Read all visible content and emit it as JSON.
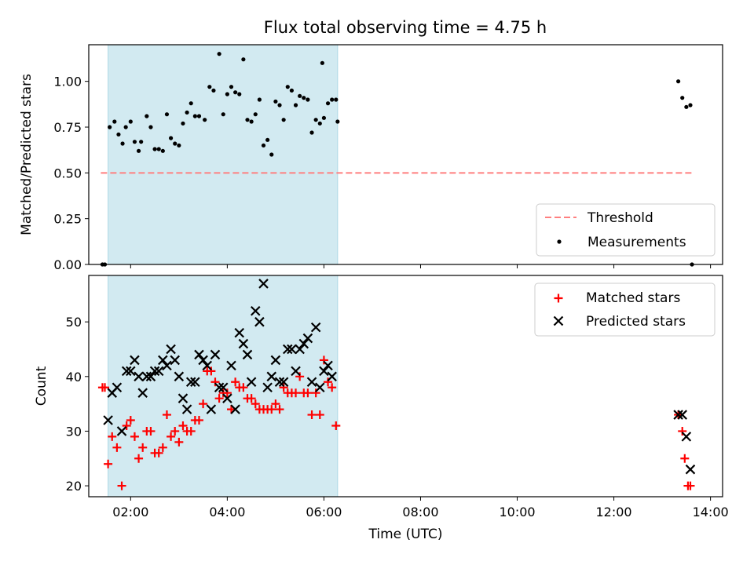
{
  "title": "Flux total observing time = 4.75 h",
  "colors": {
    "threshold": "#ff7f7f",
    "measurement": "#000000",
    "matched": "#ff0000",
    "predicted": "#000000",
    "shade": "#add8e6"
  },
  "chart_data": [
    {
      "type": "scatter",
      "panel": "top",
      "ylabel": "Matched/Predicted stars",
      "xlabel": "",
      "xlim": [
        "01:08",
        "14:15"
      ],
      "ylim": [
        0,
        1.2
      ],
      "yticks": [
        "0.00",
        "0.25",
        "0.50",
        "0.75",
        "1.00"
      ],
      "shaded_interval": [
        "01:32",
        "06:17"
      ],
      "legend_position": "lower right",
      "threshold": {
        "name": "Threshold",
        "value": 0.5,
        "x": [
          "01:23",
          "13:37"
        ],
        "style": "dashed"
      },
      "series": [
        {
          "name": "Measurements",
          "points": [
            [
              "01:25",
              0.0
            ],
            [
              "01:28",
              0.0
            ],
            [
              "01:34",
              0.75
            ],
            [
              "01:40",
              0.78
            ],
            [
              "01:45",
              0.71
            ],
            [
              "01:50",
              0.66
            ],
            [
              "01:54",
              0.75
            ],
            [
              "02:00",
              0.78
            ],
            [
              "02:05",
              0.67
            ],
            [
              "02:10",
              0.62
            ],
            [
              "02:13",
              0.67
            ],
            [
              "02:20",
              0.81
            ],
            [
              "02:25",
              0.75
            ],
            [
              "02:30",
              0.63
            ],
            [
              "02:35",
              0.63
            ],
            [
              "02:40",
              0.62
            ],
            [
              "02:45",
              0.82
            ],
            [
              "02:50",
              0.69
            ],
            [
              "02:55",
              0.66
            ],
            [
              "03:00",
              0.65
            ],
            [
              "03:05",
              0.77
            ],
            [
              "03:10",
              0.83
            ],
            [
              "03:15",
              0.88
            ],
            [
              "03:20",
              0.81
            ],
            [
              "03:25",
              0.81
            ],
            [
              "03:32",
              0.79
            ],
            [
              "03:38",
              0.97
            ],
            [
              "03:43",
              0.95
            ],
            [
              "03:50",
              1.15
            ],
            [
              "03:55",
              0.82
            ],
            [
              "04:00",
              0.93
            ],
            [
              "04:05",
              0.97
            ],
            [
              "04:10",
              0.94
            ],
            [
              "04:15",
              0.93
            ],
            [
              "04:20",
              1.12
            ],
            [
              "04:25",
              0.79
            ],
            [
              "04:30",
              0.78
            ],
            [
              "04:35",
              0.82
            ],
            [
              "04:40",
              0.9
            ],
            [
              "04:45",
              0.65
            ],
            [
              "04:50",
              0.68
            ],
            [
              "04:55",
              0.6
            ],
            [
              "05:00",
              0.89
            ],
            [
              "05:05",
              0.87
            ],
            [
              "05:10",
              0.79
            ],
            [
              "05:15",
              0.97
            ],
            [
              "05:20",
              0.95
            ],
            [
              "05:25",
              0.87
            ],
            [
              "05:30",
              0.92
            ],
            [
              "05:35",
              0.91
            ],
            [
              "05:40",
              0.9
            ],
            [
              "05:45",
              0.72
            ],
            [
              "05:50",
              0.79
            ],
            [
              "05:55",
              0.77
            ],
            [
              "05:58",
              1.1
            ],
            [
              "06:00",
              0.8
            ],
            [
              "06:05",
              0.88
            ],
            [
              "06:10",
              0.9
            ],
            [
              "06:15",
              0.9
            ],
            [
              "06:17",
              0.78
            ],
            [
              "13:20",
              1.0
            ],
            [
              "13:25",
              0.91
            ],
            [
              "13:30",
              0.86
            ],
            [
              "13:35",
              0.87
            ],
            [
              "13:37",
              0.0
            ]
          ]
        }
      ]
    },
    {
      "type": "scatter",
      "panel": "bottom",
      "ylabel": "Count",
      "xlabel": "Time (UTC)",
      "xlim": [
        "01:08",
        "14:15"
      ],
      "ylim": [
        18,
        58.5
      ],
      "yticks": [
        "20",
        "30",
        "40",
        "50"
      ],
      "xticks": [
        "02:00",
        "04:00",
        "06:00",
        "08:00",
        "10:00",
        "12:00",
        "14:00"
      ],
      "shaded_interval": [
        "01:32",
        "06:17"
      ],
      "legend_position": "upper right",
      "series": [
        {
          "name": "Matched stars",
          "marker": "plus",
          "points": [
            [
              "01:25",
              38
            ],
            [
              "01:28",
              38
            ],
            [
              "01:32",
              24
            ],
            [
              "01:37",
              29
            ],
            [
              "01:43",
              27
            ],
            [
              "01:49",
              20
            ],
            [
              "01:55",
              31
            ],
            [
              "02:00",
              32
            ],
            [
              "02:05",
              29
            ],
            [
              "02:10",
              25
            ],
            [
              "02:15",
              27
            ],
            [
              "02:20",
              30
            ],
            [
              "02:25",
              30
            ],
            [
              "02:30",
              26
            ],
            [
              "02:35",
              26
            ],
            [
              "02:40",
              27
            ],
            [
              "02:45",
              33
            ],
            [
              "02:50",
              29
            ],
            [
              "02:55",
              30
            ],
            [
              "03:00",
              28
            ],
            [
              "03:05",
              31
            ],
            [
              "03:10",
              30
            ],
            [
              "03:15",
              30
            ],
            [
              "03:20",
              32
            ],
            [
              "03:25",
              32
            ],
            [
              "03:30",
              35
            ],
            [
              "03:35",
              41
            ],
            [
              "03:40",
              41
            ],
            [
              "03:45",
              39
            ],
            [
              "03:50",
              36
            ],
            [
              "03:55",
              37
            ],
            [
              "04:00",
              37
            ],
            [
              "04:05",
              34
            ],
            [
              "04:10",
              39
            ],
            [
              "04:15",
              38
            ],
            [
              "04:20",
              38
            ],
            [
              "04:25",
              36
            ],
            [
              "04:30",
              36
            ],
            [
              "04:35",
              35
            ],
            [
              "04:40",
              34
            ],
            [
              "04:45",
              34
            ],
            [
              "04:50",
              34
            ],
            [
              "04:55",
              34
            ],
            [
              "05:00",
              35
            ],
            [
              "05:05",
              34
            ],
            [
              "05:10",
              38
            ],
            [
              "05:15",
              37
            ],
            [
              "05:20",
              37
            ],
            [
              "05:25",
              37
            ],
            [
              "05:30",
              40
            ],
            [
              "05:35",
              37
            ],
            [
              "05:40",
              37
            ],
            [
              "05:45",
              33
            ],
            [
              "05:50",
              37
            ],
            [
              "05:55",
              33
            ],
            [
              "06:00",
              43
            ],
            [
              "06:05",
              39
            ],
            [
              "06:10",
              38
            ],
            [
              "06:15",
              31
            ],
            [
              "13:20",
              33
            ],
            [
              "13:25",
              30
            ],
            [
              "13:28",
              25
            ],
            [
              "13:32",
              20
            ],
            [
              "13:35",
              20
            ]
          ]
        },
        {
          "name": "Predicted stars",
          "marker": "x",
          "points": [
            [
              "01:32",
              32
            ],
            [
              "01:37",
              37
            ],
            [
              "01:43",
              38
            ],
            [
              "01:49",
              30
            ],
            [
              "01:55",
              41
            ],
            [
              "02:00",
              41
            ],
            [
              "02:05",
              43
            ],
            [
              "02:10",
              40
            ],
            [
              "02:15",
              37
            ],
            [
              "02:20",
              40
            ],
            [
              "02:25",
              40
            ],
            [
              "02:30",
              41
            ],
            [
              "02:35",
              41
            ],
            [
              "02:40",
              43
            ],
            [
              "02:45",
              42
            ],
            [
              "02:50",
              45
            ],
            [
              "02:55",
              43
            ],
            [
              "03:00",
              40
            ],
            [
              "03:05",
              36
            ],
            [
              "03:10",
              34
            ],
            [
              "03:15",
              39
            ],
            [
              "03:20",
              39
            ],
            [
              "03:25",
              44
            ],
            [
              "03:30",
              43
            ],
            [
              "03:35",
              42
            ],
            [
              "03:40",
              34
            ],
            [
              "03:45",
              44
            ],
            [
              "03:50",
              38
            ],
            [
              "03:55",
              38
            ],
            [
              "04:00",
              36
            ],
            [
              "04:05",
              42
            ],
            [
              "04:10",
              34
            ],
            [
              "04:15",
              48
            ],
            [
              "04:20",
              46
            ],
            [
              "04:25",
              44
            ],
            [
              "04:30",
              39
            ],
            [
              "04:35",
              52
            ],
            [
              "04:40",
              50
            ],
            [
              "04:45",
              57
            ],
            [
              "04:50",
              38
            ],
            [
              "04:55",
              40
            ],
            [
              "05:00",
              43
            ],
            [
              "05:05",
              39
            ],
            [
              "05:10",
              39
            ],
            [
              "05:15",
              45
            ],
            [
              "05:20",
              45
            ],
            [
              "05:25",
              41
            ],
            [
              "05:30",
              45
            ],
            [
              "05:35",
              46
            ],
            [
              "05:40",
              47
            ],
            [
              "05:45",
              39
            ],
            [
              "05:50",
              49
            ],
            [
              "05:55",
              38
            ],
            [
              "06:00",
              41
            ],
            [
              "06:05",
              42
            ],
            [
              "06:10",
              40
            ],
            [
              "13:20",
              33
            ],
            [
              "13:25",
              33
            ],
            [
              "13:30",
              29
            ],
            [
              "13:35",
              23
            ]
          ]
        }
      ]
    }
  ]
}
